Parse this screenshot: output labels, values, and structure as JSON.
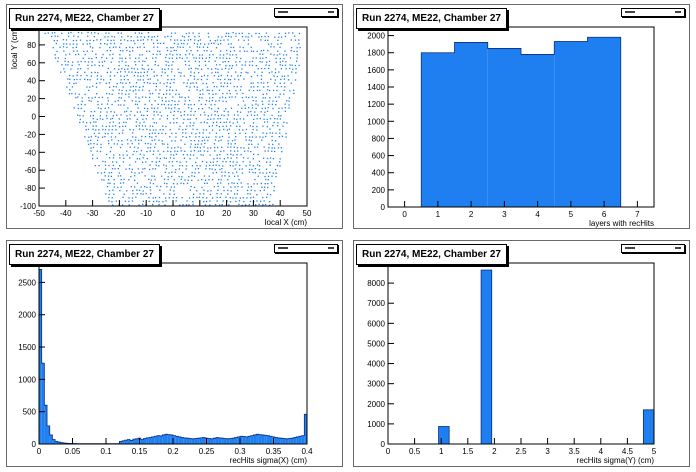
{
  "colors": {
    "fill": "#1f7ff0",
    "stroke": "#0a2f80",
    "axis": "#000000"
  },
  "chart_data": [
    {
      "type": "scatter",
      "title": "Run 2274, ME22, Chamber 27",
      "xlabel": "local X (cm)",
      "ylabel": "local Y (cm)",
      "xlim": [
        -50,
        50
      ],
      "ylim": [
        -100,
        100
      ],
      "xticks": [
        -50,
        -40,
        -30,
        -20,
        -10,
        0,
        10,
        20,
        30,
        40,
        50
      ],
      "yticks": [
        -100,
        -80,
        -60,
        -40,
        -20,
        0,
        20,
        40,
        60,
        80
      ],
      "bands": [
        {
          "y": 94,
          "xmin": -48,
          "xmax": 49
        },
        {
          "y": 90,
          "xmin": -47,
          "xmax": 49
        },
        {
          "y": 86,
          "xmin": -46,
          "xmax": 48
        },
        {
          "y": 82,
          "xmin": -46,
          "xmax": 48
        },
        {
          "y": 78,
          "xmin": -45,
          "xmax": 48
        },
        {
          "y": 74,
          "xmin": -45,
          "xmax": 48
        },
        {
          "y": 70,
          "xmin": -44,
          "xmax": 47
        },
        {
          "y": 66,
          "xmin": -44,
          "xmax": 47
        },
        {
          "y": 62,
          "xmin": -43,
          "xmax": 47
        },
        {
          "y": 58,
          "xmin": -43,
          "xmax": 47
        },
        {
          "y": 54,
          "xmin": -42,
          "xmax": 46
        },
        {
          "y": 50,
          "xmin": -42,
          "xmax": 46
        },
        {
          "y": 46,
          "xmin": -41,
          "xmax": 46
        },
        {
          "y": 42,
          "xmin": -41,
          "xmax": 46
        },
        {
          "y": 38,
          "xmin": -40,
          "xmax": 45
        },
        {
          "y": 34,
          "xmin": -40,
          "xmax": 45
        },
        {
          "y": 30,
          "xmin": -39,
          "xmax": 45
        },
        {
          "y": 26,
          "xmin": -39,
          "xmax": 45
        },
        {
          "y": 22,
          "xmin": -38,
          "xmax": 44
        },
        {
          "y": 18,
          "xmin": -38,
          "xmax": 44
        },
        {
          "y": 14,
          "xmin": -37,
          "xmax": 44
        },
        {
          "y": 10,
          "xmin": -37,
          "xmax": 44
        },
        {
          "y": 6,
          "xmin": -36,
          "xmax": 43
        },
        {
          "y": 2,
          "xmin": -36,
          "xmax": 43
        },
        {
          "y": -2,
          "xmin": -35,
          "xmax": 43
        },
        {
          "y": -6,
          "xmin": -35,
          "xmax": 43
        },
        {
          "y": -10,
          "xmin": -34,
          "xmax": 42
        },
        {
          "y": -14,
          "xmin": -34,
          "xmax": 42
        },
        {
          "y": -18,
          "xmin": -33,
          "xmax": 42
        },
        {
          "y": -22,
          "xmin": -33,
          "xmax": 42
        },
        {
          "y": -26,
          "xmin": -32,
          "xmax": 41
        },
        {
          "y": -30,
          "xmin": -32,
          "xmax": 41
        },
        {
          "y": -34,
          "xmin": -31,
          "xmax": 41
        },
        {
          "y": -38,
          "xmin": -31,
          "xmax": 41
        },
        {
          "y": -42,
          "xmin": -30,
          "xmax": 40
        },
        {
          "y": -46,
          "xmin": -30,
          "xmax": 40
        },
        {
          "y": -50,
          "xmin": -29,
          "xmax": 40
        },
        {
          "y": -54,
          "xmin": -29,
          "xmax": 40
        },
        {
          "y": -58,
          "xmin": -28,
          "xmax": 39
        },
        {
          "y": -62,
          "xmin": -28,
          "xmax": 39
        },
        {
          "y": -66,
          "xmin": -27,
          "xmax": 39
        },
        {
          "y": -70,
          "xmin": -27,
          "xmax": 39
        },
        {
          "y": -74,
          "xmin": -26,
          "xmax": 38
        },
        {
          "y": -78,
          "xmin": -26,
          "xmax": 38
        },
        {
          "y": -82,
          "xmin": -25,
          "xmax": 38
        },
        {
          "y": -86,
          "xmin": -25,
          "xmax": 38
        },
        {
          "y": -90,
          "xmin": -24,
          "xmax": 37
        },
        {
          "y": -94,
          "xmin": -24,
          "xmax": 37
        },
        {
          "y": -98,
          "xmin": -23,
          "xmax": 37
        }
      ]
    },
    {
      "type": "bar",
      "title": "Run 2274, ME22, Chamber 27",
      "xlabel": "layers with recHits",
      "ylabel": "",
      "xlim": [
        -0.5,
        7.5
      ],
      "ylim": [
        0,
        2100
      ],
      "xticks": [
        0,
        1,
        2,
        3,
        4,
        5,
        6,
        7
      ],
      "yticks": [
        0,
        200,
        400,
        600,
        800,
        1000,
        1200,
        1400,
        1600,
        1800,
        2000
      ],
      "bins": [
        {
          "lo": 0.5,
          "hi": 1.5,
          "v": 1800
        },
        {
          "lo": 1.5,
          "hi": 2.5,
          "v": 1920
        },
        {
          "lo": 2.5,
          "hi": 3.5,
          "v": 1850
        },
        {
          "lo": 3.5,
          "hi": 4.5,
          "v": 1780
        },
        {
          "lo": 4.5,
          "hi": 5.5,
          "v": 1930
        },
        {
          "lo": 5.5,
          "hi": 6.5,
          "v": 1980
        }
      ]
    },
    {
      "type": "bar",
      "title": "Run 2274, ME22, Chamber 27",
      "xlabel": "recHits sigma(X) (cm)",
      "ylabel": "",
      "xlim": [
        0,
        0.4
      ],
      "ylim": [
        0,
        2800
      ],
      "xticks": [
        0,
        0.05,
        0.1,
        0.15,
        0.2,
        0.25,
        0.3,
        0.35,
        0.4
      ],
      "ytick_labels": [
        "0",
        "500",
        "1000",
        "1500",
        "2000",
        "2500"
      ],
      "ytick_values": [
        0,
        500,
        1000,
        1500,
        2000,
        2500
      ],
      "bin_width": 0.004,
      "values": [
        2700,
        1250,
        600,
        280,
        140,
        70,
        40,
        30,
        20,
        15,
        12,
        10,
        8,
        8,
        6,
        6,
        5,
        5,
        5,
        5,
        5,
        5,
        5,
        6,
        6,
        5,
        5,
        5,
        5,
        5,
        40,
        50,
        60,
        70,
        55,
        75,
        80,
        90,
        70,
        85,
        95,
        100,
        110,
        120,
        130,
        125,
        140,
        150,
        145,
        140,
        130,
        120,
        110,
        100,
        95,
        90,
        85,
        80,
        85,
        90,
        95,
        100,
        90,
        85,
        80,
        90,
        100,
        95,
        90,
        85,
        80,
        85,
        90,
        100,
        110,
        120,
        115,
        110,
        120,
        130,
        140,
        150,
        145,
        140,
        135,
        130,
        120,
        110,
        100,
        95,
        90,
        85,
        80,
        85,
        90,
        100,
        110,
        120,
        130,
        460
      ]
    },
    {
      "type": "bar",
      "title": "Run 2274, ME22, Chamber 27",
      "xlabel": "recHits sigma(Y) (cm)",
      "ylabel": "",
      "xlim": [
        0,
        5
      ],
      "ylim": [
        0,
        9000
      ],
      "xticks": [
        0,
        0.5,
        1,
        1.5,
        2,
        2.5,
        3,
        3.5,
        4,
        4.5,
        5
      ],
      "yticks": [
        0,
        1000,
        2000,
        3000,
        4000,
        5000,
        6000,
        7000,
        8000,
        9000
      ],
      "bins": [
        {
          "lo": 0.95,
          "hi": 1.15,
          "v": 870
        },
        {
          "lo": 1.75,
          "hi": 1.95,
          "v": 8650
        },
        {
          "lo": 4.8,
          "hi": 5.0,
          "v": 1700
        }
      ]
    }
  ]
}
